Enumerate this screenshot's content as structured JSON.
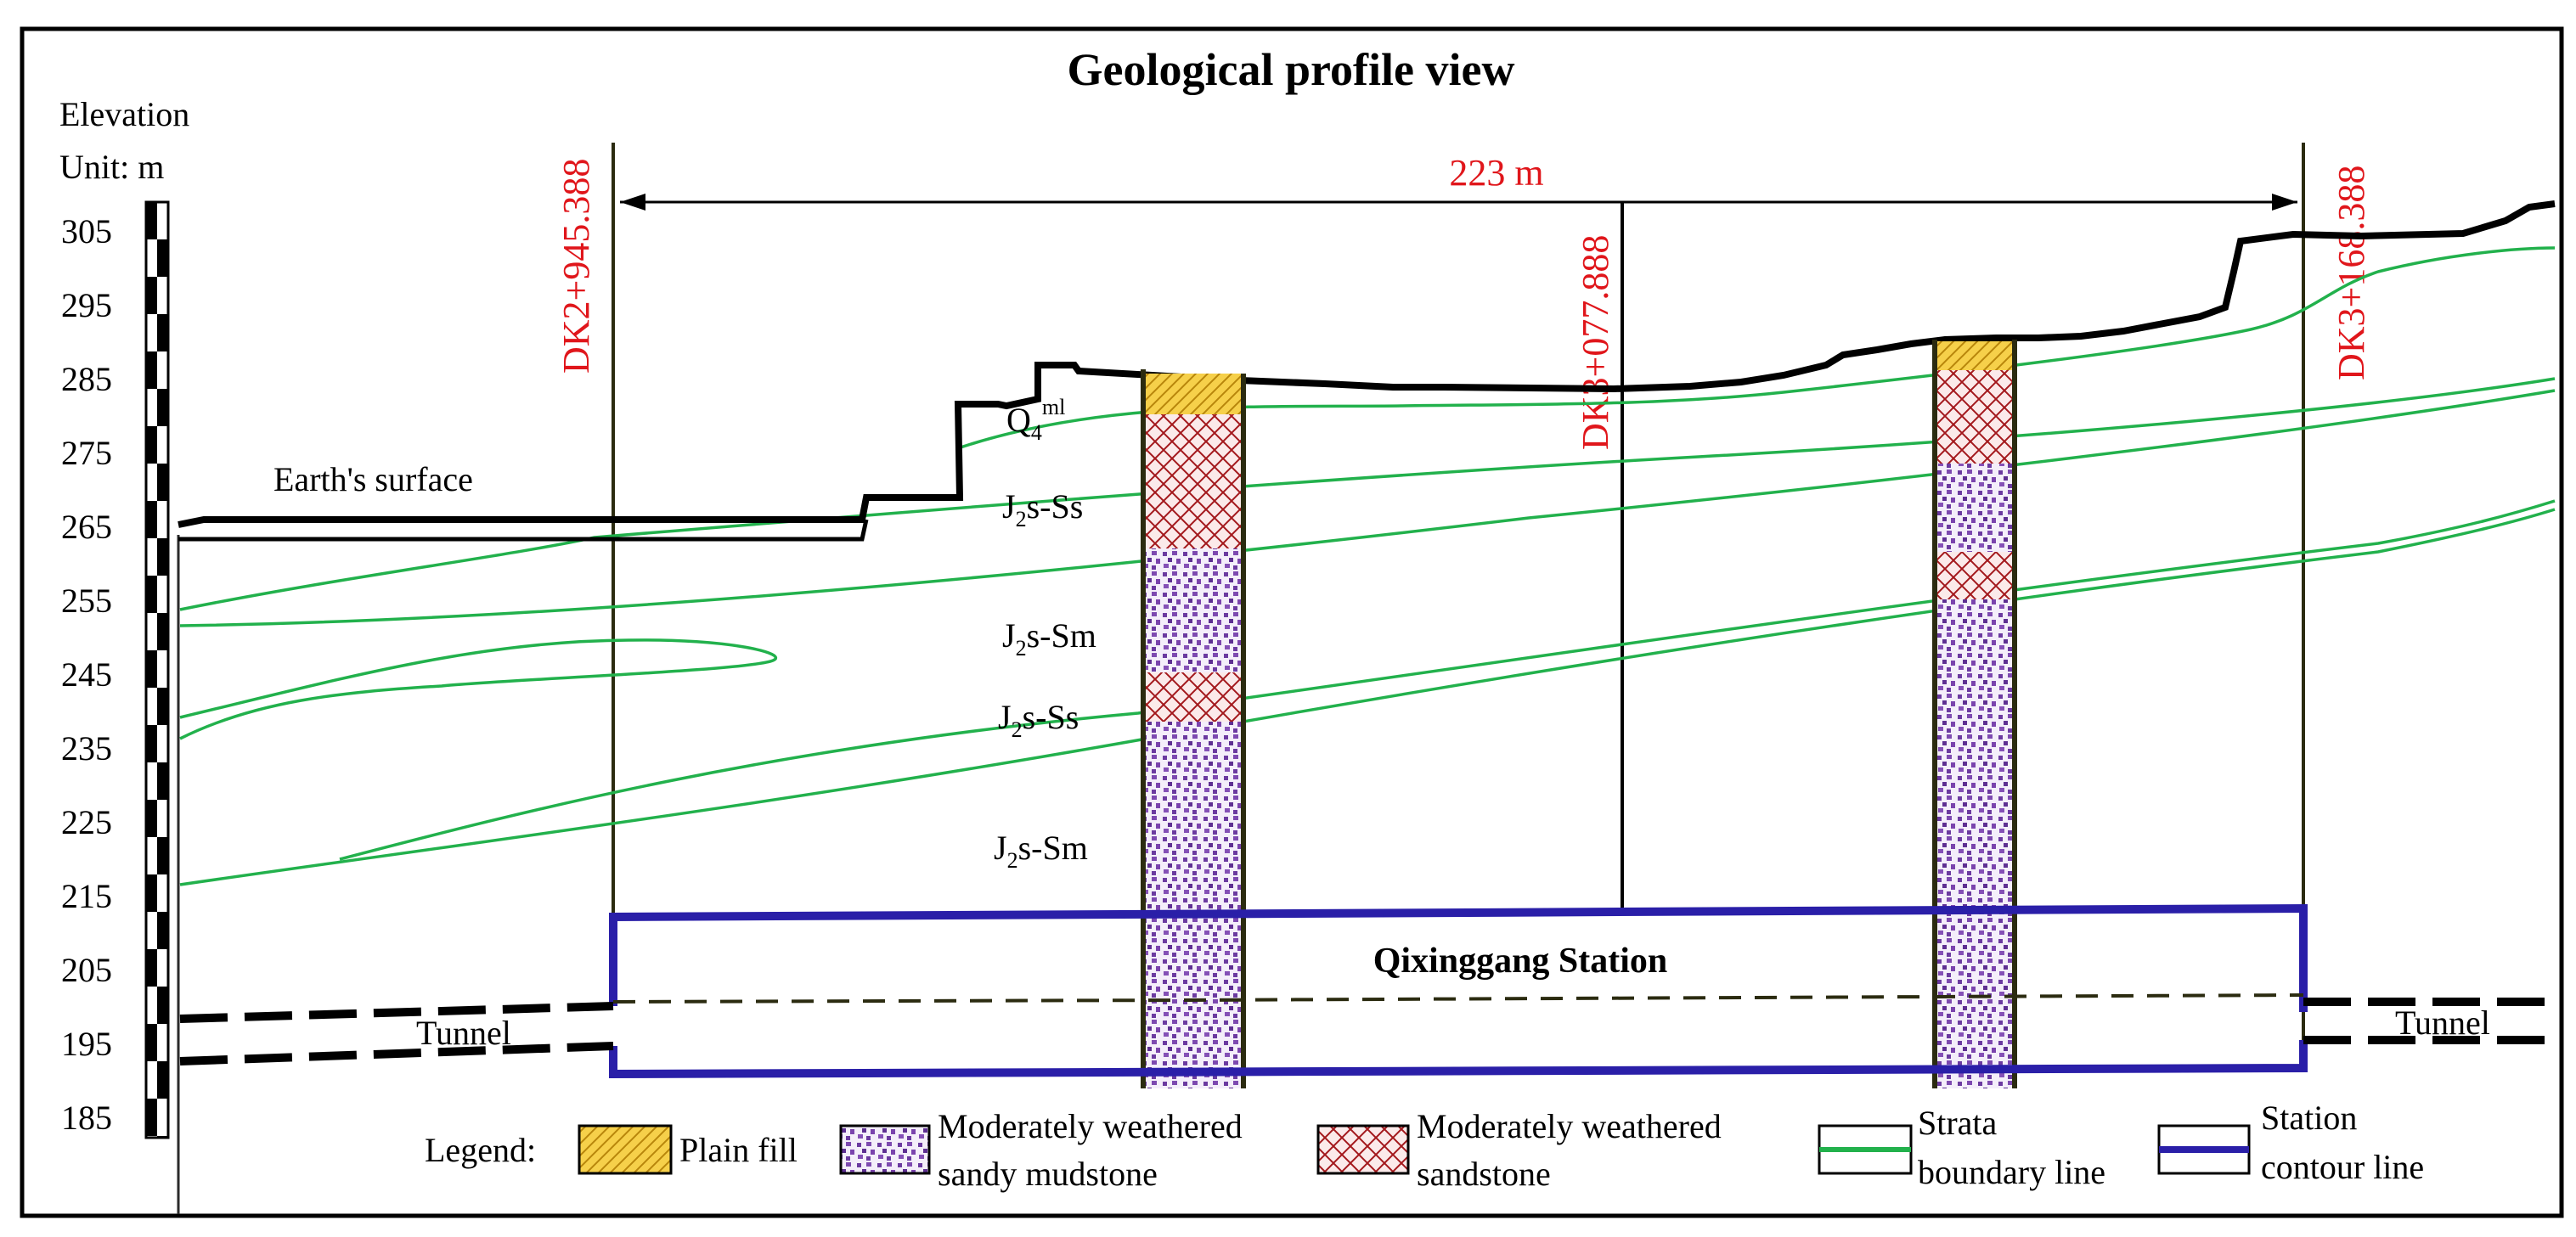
{
  "title": "Geological profile view",
  "axis": {
    "label_line1": "Elevation",
    "label_line2": "Unit: m",
    "ticks": [
      305,
      295,
      285,
      275,
      265,
      255,
      245,
      235,
      225,
      215,
      205,
      195,
      185
    ]
  },
  "stations": {
    "left": "DK2+945.388",
    "middle": "DK3+077.888",
    "right": "DK3+168.388"
  },
  "dimension": "223 m",
  "labels": {
    "earth_surface": "Earth's surface",
    "quaternary": "Q",
    "quaternary_sub": "4",
    "quaternary_sup": "ml",
    "strata": [
      {
        "pre": "J",
        "sub": "2",
        "post": "s-Ss"
      },
      {
        "pre": "J",
        "sub": "2",
        "post": "s-Sm"
      },
      {
        "pre": "J",
        "sub": "2",
        "post": "s-Ss"
      },
      {
        "pre": "J",
        "sub": "2",
        "post": "s-Sm"
      }
    ],
    "station_name": "Qixinggang Station",
    "tunnel_left": "Tunnel",
    "tunnel_right": "Tunnel"
  },
  "legend": {
    "title": "Legend:",
    "plain_fill": "Plain fill",
    "mudstone_1": "Moderately weathered",
    "mudstone_2": "sandy mudstone",
    "sandstone_1": "Moderately weathered",
    "sandstone_2": "sandstone",
    "strata_1": "Strata",
    "strata_2": "boundary line",
    "contour_1": "Station",
    "contour_2": "contour line"
  },
  "colors": {
    "strata_line": "#22b14c",
    "station_contour": "#2a1fa8",
    "station_text": "#e0161b",
    "plain_fill": "#f2c13a",
    "mudstone": "#7a3fa8",
    "sandstone": "#a01818"
  }
}
